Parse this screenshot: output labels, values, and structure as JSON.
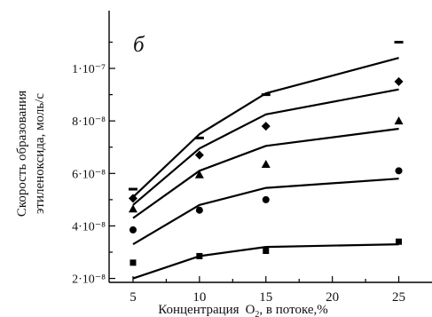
{
  "chart_data": {
    "type": "scatter",
    "panel_label": "б",
    "xlabel_prefix": "Концентрация",
    "xlabel_formula_main": "O",
    "xlabel_formula_sub": "2",
    "xlabel_suffix": ", в потоке,%",
    "ylabel_line1": "Скорость образования",
    "ylabel_line2": "этиленоксида, моль/с",
    "xlim": [
      3.2,
      27.5
    ],
    "ylim": [
      1.85e-08,
      1.22e-07
    ],
    "x_ticks": [
      {
        "value": 5,
        "label": "5"
      },
      {
        "value": 10,
        "label": "10"
      },
      {
        "value": 15,
        "label": "15"
      },
      {
        "value": 20,
        "label": "20"
      },
      {
        "value": 25,
        "label": "25"
      }
    ],
    "y_ticks": [
      {
        "value": 2e-08,
        "label": "2·10⁻⁸"
      },
      {
        "value": 4e-08,
        "label": "4·10⁻⁸"
      },
      {
        "value": 6e-08,
        "label": "6·10⁻⁸"
      },
      {
        "value": 8e-08,
        "label": "8·10⁻⁸"
      },
      {
        "value": 1e-07,
        "label": "1·10⁻⁷"
      }
    ],
    "series": [
      {
        "marker": "dash",
        "points": [
          [
            5,
            5.4e-08
          ],
          [
            10,
            7.35e-08
          ],
          [
            15,
            9e-08
          ],
          [
            25,
            1.1e-07
          ]
        ],
        "fit": [
          [
            5,
            5.1e-08
          ],
          [
            10,
            7.5e-08
          ],
          [
            15,
            9.05e-08
          ],
          [
            25,
            1.04e-07
          ]
        ]
      },
      {
        "marker": "diamond",
        "points": [
          [
            5,
            5.05e-08
          ],
          [
            10,
            6.7e-08
          ],
          [
            15,
            7.8e-08
          ],
          [
            25,
            9.5e-08
          ]
        ],
        "fit": [
          [
            5,
            4.8e-08
          ],
          [
            10,
            6.95e-08
          ],
          [
            15,
            8.25e-08
          ],
          [
            25,
            9.2e-08
          ]
        ]
      },
      {
        "marker": "triangle",
        "points": [
          [
            5,
            4.65e-08
          ],
          [
            10,
            5.95e-08
          ],
          [
            15,
            6.35e-08
          ],
          [
            25,
            8e-08
          ]
        ],
        "fit": [
          [
            5,
            4.3e-08
          ],
          [
            10,
            6.1e-08
          ],
          [
            15,
            7.05e-08
          ],
          [
            25,
            7.7e-08
          ]
        ]
      },
      {
        "marker": "circle",
        "points": [
          [
            5,
            3.85e-08
          ],
          [
            10,
            4.6e-08
          ],
          [
            15,
            5e-08
          ],
          [
            25,
            6.1e-08
          ]
        ],
        "fit": [
          [
            5,
            3.3e-08
          ],
          [
            10,
            4.8e-08
          ],
          [
            15,
            5.45e-08
          ],
          [
            25,
            5.8e-08
          ]
        ]
      },
      {
        "marker": "square",
        "points": [
          [
            5,
            2.6e-08
          ],
          [
            10,
            2.85e-08
          ],
          [
            15,
            3.05e-08
          ],
          [
            25,
            3.4e-08
          ]
        ],
        "fit": [
          [
            5,
            2e-08
          ],
          [
            10,
            2.85e-08
          ],
          [
            15,
            3.2e-08
          ],
          [
            25,
            3.3e-08
          ]
        ]
      }
    ]
  }
}
